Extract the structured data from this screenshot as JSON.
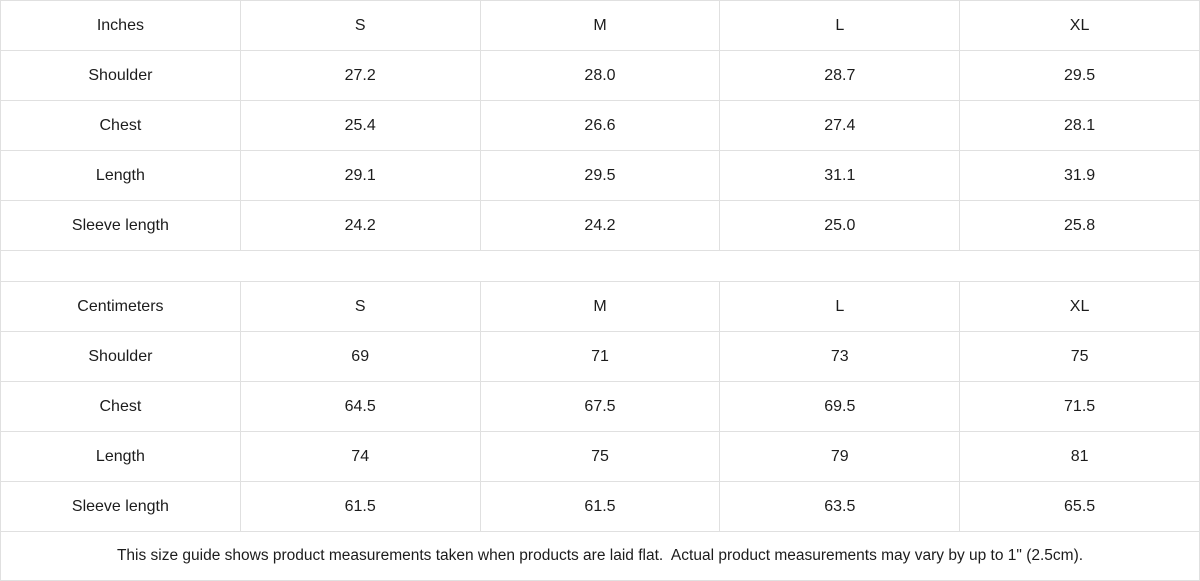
{
  "chart_data": [
    {
      "type": "table",
      "title": "Inches",
      "columns": [
        "Inches",
        "S",
        "M",
        "L",
        "XL"
      ],
      "rows": [
        [
          "Shoulder",
          "27.2",
          "28.0",
          "28.7",
          "29.5"
        ],
        [
          "Chest",
          "25.4",
          "26.6",
          "27.4",
          "28.1"
        ],
        [
          "Length",
          "29.1",
          "29.5",
          "31.1",
          "31.9"
        ],
        [
          "Sleeve length",
          "24.2",
          "24.2",
          "25.0",
          "25.8"
        ]
      ]
    },
    {
      "type": "table",
      "title": "Centimeters",
      "columns": [
        "Centimeters",
        "S",
        "M",
        "L",
        "XL"
      ],
      "rows": [
        [
          "Shoulder",
          "69",
          "71",
          "73",
          "75"
        ],
        [
          "Chest",
          "64.5",
          "67.5",
          "69.5",
          "71.5"
        ],
        [
          "Length",
          "74",
          "75",
          "79",
          "81"
        ],
        [
          "Sleeve length",
          "61.5",
          "61.5",
          "63.5",
          "65.5"
        ]
      ]
    }
  ],
  "footer": {
    "note": "This size guide shows product measurements taken when products are laid flat.  Actual product measurements may vary by up to 1\" (2.5cm)."
  },
  "colors": {
    "cell_shade_bg": "#f1f1f1",
    "border": "#e0e0e0",
    "text": "#1c1c1c",
    "background": "#ffffff"
  }
}
